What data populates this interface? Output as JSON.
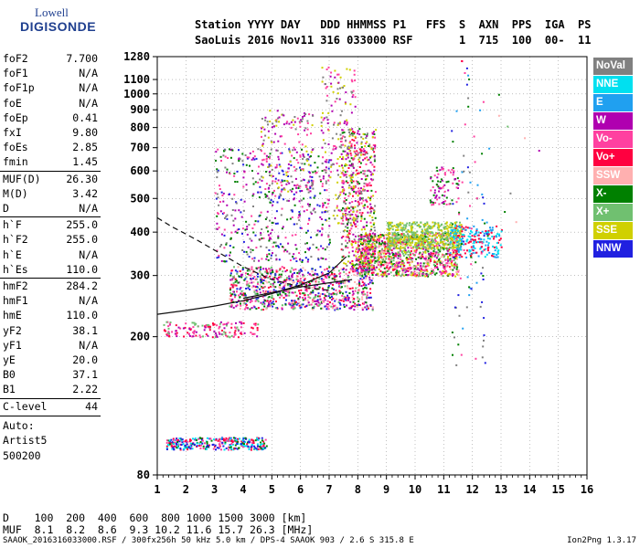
{
  "logo": {
    "line1": "Lowell",
    "line2": "DIGISONDE"
  },
  "header": {
    "row1": "Station YYYY DAY   DDD HHMMSS P1   FFS  S  AXN  PPS  IGA  PS",
    "row2": "SaoLuis 2016 Nov11 316 033000 RSF       1  715  100  00-  11"
  },
  "params": [
    {
      "label": "foF2",
      "value": "7.700"
    },
    {
      "label": "foF1",
      "value": "N/A"
    },
    {
      "label": "foF1p",
      "value": "N/A"
    },
    {
      "label": "foE",
      "value": "N/A"
    },
    {
      "label": "foEp",
      "value": "0.41"
    },
    {
      "label": "fxI",
      "value": "9.80"
    },
    {
      "label": "foEs",
      "value": "2.85"
    },
    {
      "label": "fmin",
      "value": "1.45"
    },
    {
      "label": "MUF(D)",
      "value": "26.30"
    },
    {
      "label": "M(D)",
      "value": "3.42"
    },
    {
      "label": "D",
      "value": "N/A"
    },
    {
      "label": "h`F",
      "value": "255.0"
    },
    {
      "label": "h`F2",
      "value": "255.0"
    },
    {
      "label": "h`E",
      "value": "N/A"
    },
    {
      "label": "h`Es",
      "value": "110.0"
    },
    {
      "label": "hmF2",
      "value": "284.2"
    },
    {
      "label": "hmF1",
      "value": "N/A"
    },
    {
      "label": "hmE",
      "value": "110.0"
    },
    {
      "label": "yF2",
      "value": "38.1"
    },
    {
      "label": "yF1",
      "value": "N/A"
    },
    {
      "label": "yE",
      "value": "20.0"
    },
    {
      "label": "B0",
      "value": "37.1"
    },
    {
      "label": "B1",
      "value": "2.22"
    },
    {
      "label": "C-level",
      "value": "44"
    }
  ],
  "auto": {
    "line1": "Auto:",
    "line2": "Artist5",
    "line3": "500200"
  },
  "legend": [
    {
      "label": "NoVal",
      "color": "#808080"
    },
    {
      "label": "NNE",
      "color": "#00e0f0"
    },
    {
      "label": "E",
      "color": "#20a0f0"
    },
    {
      "label": "W",
      "color": "#b000b0"
    },
    {
      "label": "Vo-",
      "color": "#ff40a0"
    },
    {
      "label": "Vo+",
      "color": "#ff0040"
    },
    {
      "label": "SSW",
      "color": "#ffb0b0"
    },
    {
      "label": "X-",
      "color": "#008000"
    },
    {
      "label": "X+",
      "color": "#70c070"
    },
    {
      "label": "SSE",
      "color": "#d0d000"
    },
    {
      "label": "NNW",
      "color": "#2020e0"
    }
  ],
  "dtable": {
    "row1": "D    100  200  400  600  800 1000 1500 3000 [km]",
    "row2": "MUF  8.1  8.2  8.6  9.3 10.2 11.6 15.7 26.3 [MHz]"
  },
  "footer": {
    "left": "SAAOK_2016316033000.RSF / 300fx256h 50 kHz 5.0 km / DPS-4 SAAOK 903 / 2.6 S 315.8 E",
    "right": "Ion2Png 1.3.17"
  },
  "chart_data": {
    "type": "scatter",
    "x_ticks": [
      "1",
      "2",
      "3",
      "4",
      "5",
      "6",
      "7",
      "8",
      "9",
      "10",
      "11",
      "12",
      "13",
      "14",
      "15",
      "16"
    ],
    "y_ticks": [
      "80",
      "200",
      "300",
      "400",
      "500",
      "600",
      "700",
      "800",
      "900",
      "1000",
      "1100",
      "1280"
    ],
    "xlim": [
      1,
      16
    ],
    "ylim": [
      80,
      1280
    ],
    "y_scale": "log",
    "traces": [
      {
        "name": "o-trace",
        "style": "solid",
        "x": [
          1,
          2,
          3,
          4,
          5,
          6,
          7,
          7.6
        ],
        "y": [
          232,
          238,
          245,
          254,
          266,
          282,
          305,
          340
        ]
      },
      {
        "name": "x-trace",
        "style": "solid",
        "x": [
          4,
          5,
          6,
          7,
          7.8
        ],
        "y": [
          258,
          268,
          278,
          286,
          292
        ]
      },
      {
        "name": "profile",
        "style": "dashed",
        "x": [
          1,
          1.5,
          2,
          2.5,
          3,
          3.5,
          4,
          5,
          6,
          7
        ],
        "y": [
          440,
          415,
          395,
          375,
          355,
          336,
          318,
          292,
          278,
          272
        ]
      }
    ]
  }
}
